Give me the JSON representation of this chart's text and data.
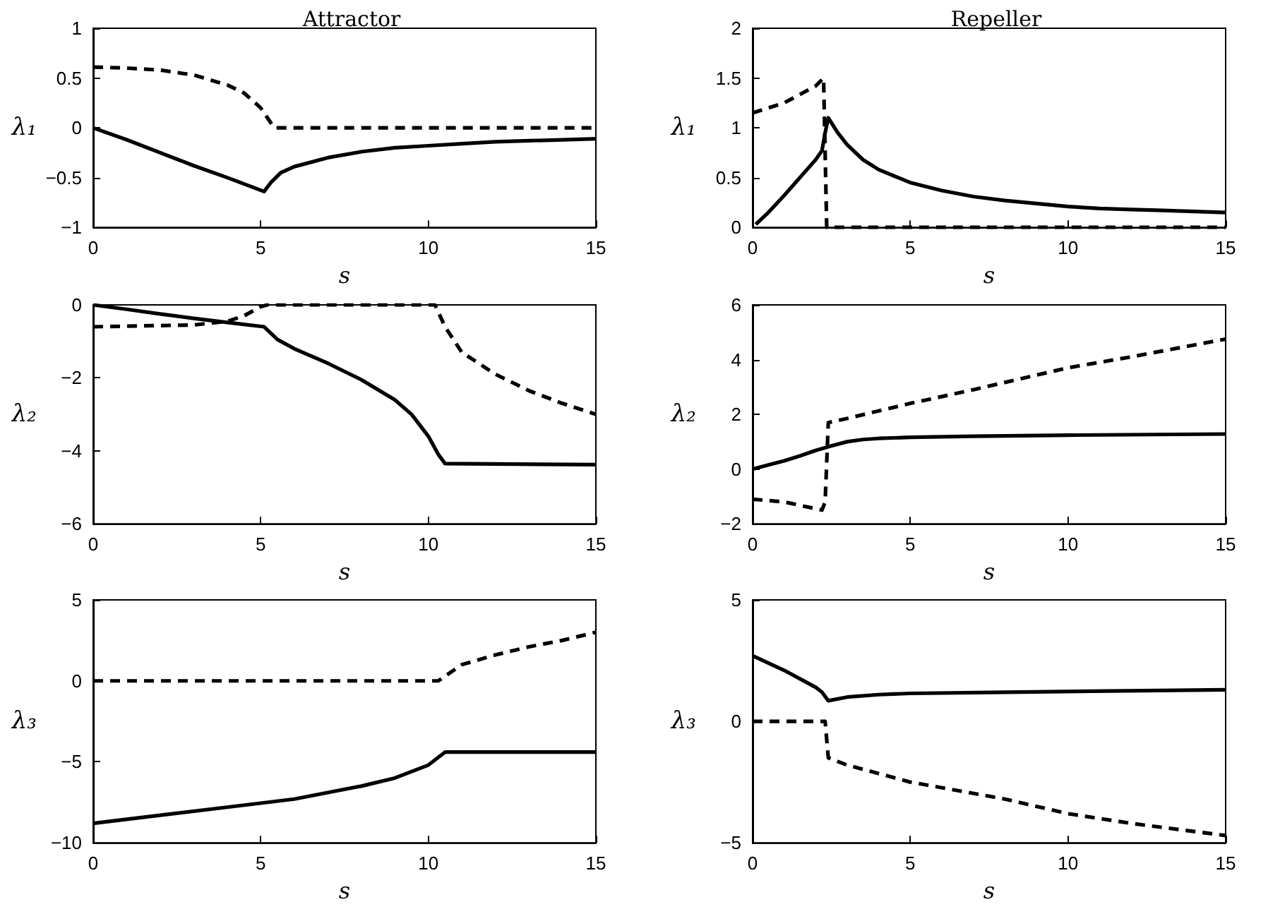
{
  "chart_data": [
    {
      "type": "line",
      "title": "Attractor",
      "xlabel": "s",
      "ylabel": "λ₁",
      "xlim": [
        0,
        15
      ],
      "xticks": [
        0,
        5,
        10,
        15
      ],
      "ylim": [
        -1,
        1
      ],
      "yticks": [
        -1,
        -0.5,
        0,
        0.5,
        1
      ],
      "grid": false,
      "series": [
        {
          "color": "#000000",
          "line_style": "solid",
          "x": [
            0,
            1,
            2,
            3,
            4,
            5.1,
            5.3,
            5.6,
            6,
            7,
            8,
            9,
            10,
            11,
            12,
            13,
            14,
            15
          ],
          "values": [
            0,
            -0.12,
            -0.25,
            -0.38,
            -0.5,
            -0.64,
            -0.55,
            -0.45,
            -0.39,
            -0.3,
            -0.24,
            -0.2,
            -0.18,
            -0.16,
            -0.14,
            -0.13,
            -0.12,
            -0.11
          ]
        },
        {
          "color": "#000000",
          "line_style": "dashed",
          "x": [
            0,
            1,
            2,
            3,
            4,
            4.5,
            5,
            5.3,
            5.4,
            15
          ],
          "values": [
            0.61,
            0.6,
            0.58,
            0.53,
            0.43,
            0.35,
            0.2,
            0.05,
            0,
            0
          ]
        }
      ]
    },
    {
      "type": "line",
      "title": "Repeller",
      "xlabel": "s",
      "ylabel": "λ₁",
      "xlim": [
        0,
        15
      ],
      "xticks": [
        0,
        5,
        10,
        15
      ],
      "ylim": [
        0,
        2
      ],
      "yticks": [
        0,
        0.5,
        1,
        1.5,
        2
      ],
      "grid": false,
      "series": [
        {
          "color": "#000000",
          "line_style": "solid",
          "x": [
            0.1,
            0.5,
            1,
            1.5,
            2,
            2.2,
            2.3,
            2.4,
            2.7,
            3,
            3.5,
            4,
            5,
            6,
            7,
            8,
            9,
            10,
            11,
            12,
            13,
            14,
            15
          ],
          "values": [
            0.03,
            0.15,
            0.32,
            0.5,
            0.68,
            0.77,
            0.95,
            1.1,
            0.95,
            0.83,
            0.68,
            0.58,
            0.45,
            0.37,
            0.31,
            0.27,
            0.24,
            0.21,
            0.19,
            0.18,
            0.17,
            0.16,
            0.15
          ]
        },
        {
          "color": "#000000",
          "line_style": "dashed",
          "x": [
            0,
            1,
            2,
            2.25,
            2.35,
            15
          ],
          "values": [
            1.15,
            1.25,
            1.42,
            1.5,
            0,
            0
          ]
        }
      ]
    },
    {
      "type": "line",
      "xlabel": "s",
      "ylabel": "λ₂",
      "xlim": [
        0,
        15
      ],
      "xticks": [
        0,
        5,
        10,
        15
      ],
      "ylim": [
        -6,
        0
      ],
      "yticks": [
        -6,
        -4,
        -2,
        0
      ],
      "grid": false,
      "series": [
        {
          "color": "#000000",
          "line_style": "solid",
          "x": [
            0,
            1,
            2,
            3,
            4,
            5.1,
            5.5,
            6,
            7,
            8,
            9,
            9.5,
            10,
            10.3,
            10.5,
            15
          ],
          "values": [
            0,
            -0.12,
            -0.25,
            -0.37,
            -0.48,
            -0.6,
            -0.95,
            -1.2,
            -1.6,
            -2.05,
            -2.6,
            -3,
            -3.6,
            -4.1,
            -4.35,
            -4.38
          ]
        },
        {
          "color": "#000000",
          "line_style": "dashed",
          "x": [
            0,
            3,
            4,
            4.5,
            5,
            5.2,
            10.2,
            10.5,
            11,
            12,
            13,
            14,
            15
          ],
          "values": [
            -0.6,
            -0.55,
            -0.45,
            -0.3,
            -0.05,
            0,
            0,
            -0.6,
            -1.3,
            -1.9,
            -2.35,
            -2.7,
            -3
          ]
        }
      ]
    },
    {
      "type": "line",
      "xlabel": "s",
      "ylabel": "λ₂",
      "xlim": [
        0,
        15
      ],
      "xticks": [
        0,
        5,
        10,
        15
      ],
      "ylim": [
        -2,
        6
      ],
      "yticks": [
        -2,
        0,
        2,
        4,
        6
      ],
      "grid": false,
      "series": [
        {
          "color": "#000000",
          "line_style": "solid",
          "x": [
            0,
            0.5,
            1,
            1.5,
            2,
            2.5,
            3,
            3.5,
            4,
            5,
            7,
            10,
            15
          ],
          "values": [
            0,
            0.15,
            0.3,
            0.48,
            0.68,
            0.85,
            1.0,
            1.08,
            1.12,
            1.16,
            1.2,
            1.24,
            1.28
          ]
        },
        {
          "color": "#000000",
          "line_style": "dashed",
          "x": [
            0,
            1,
            2.2,
            2.3,
            2.4,
            3,
            5,
            7,
            10,
            12,
            15
          ],
          "values": [
            -1.1,
            -1.2,
            -1.5,
            -1.2,
            1.7,
            1.85,
            2.4,
            2.9,
            3.7,
            4.1,
            4.75
          ]
        }
      ]
    },
    {
      "type": "line",
      "xlabel": "s",
      "ylabel": "λ₃",
      "xlim": [
        0,
        15
      ],
      "xticks": [
        0,
        5,
        10,
        15
      ],
      "ylim": [
        -10,
        5
      ],
      "yticks": [
        -10,
        -5,
        0,
        5
      ],
      "grid": false,
      "series": [
        {
          "color": "#000000",
          "line_style": "solid",
          "x": [
            0,
            2,
            4,
            6,
            8,
            9,
            10,
            10.5,
            15
          ],
          "values": [
            -8.8,
            -8.3,
            -7.8,
            -7.3,
            -6.5,
            -6,
            -5.2,
            -4.4,
            -4.4
          ]
        },
        {
          "color": "#000000",
          "line_style": "dashed",
          "x": [
            0,
            10.3,
            11,
            12,
            13,
            14,
            15
          ],
          "values": [
            0,
            0,
            1.0,
            1.6,
            2.1,
            2.5,
            3.0
          ]
        }
      ]
    },
    {
      "type": "line",
      "xlabel": "s",
      "ylabel": "λ₃",
      "xlim": [
        0,
        15
      ],
      "xticks": [
        0,
        5,
        10,
        15
      ],
      "ylim": [
        -5,
        5
      ],
      "yticks": [
        -5,
        0,
        5
      ],
      "grid": false,
      "series": [
        {
          "color": "#000000",
          "line_style": "solid",
          "x": [
            0,
            1,
            2,
            2.2,
            2.4,
            3,
            4,
            5,
            8,
            15
          ],
          "values": [
            2.7,
            2.1,
            1.4,
            1.2,
            0.85,
            1.0,
            1.1,
            1.15,
            1.2,
            1.3
          ]
        },
        {
          "color": "#000000",
          "line_style": "dashed",
          "x": [
            0,
            2.3,
            2.4,
            3,
            5,
            8,
            10,
            12,
            15
          ],
          "values": [
            0,
            0,
            -1.5,
            -1.8,
            -2.5,
            -3.2,
            -3.8,
            -4.2,
            -4.7
          ]
        }
      ]
    }
  ]
}
